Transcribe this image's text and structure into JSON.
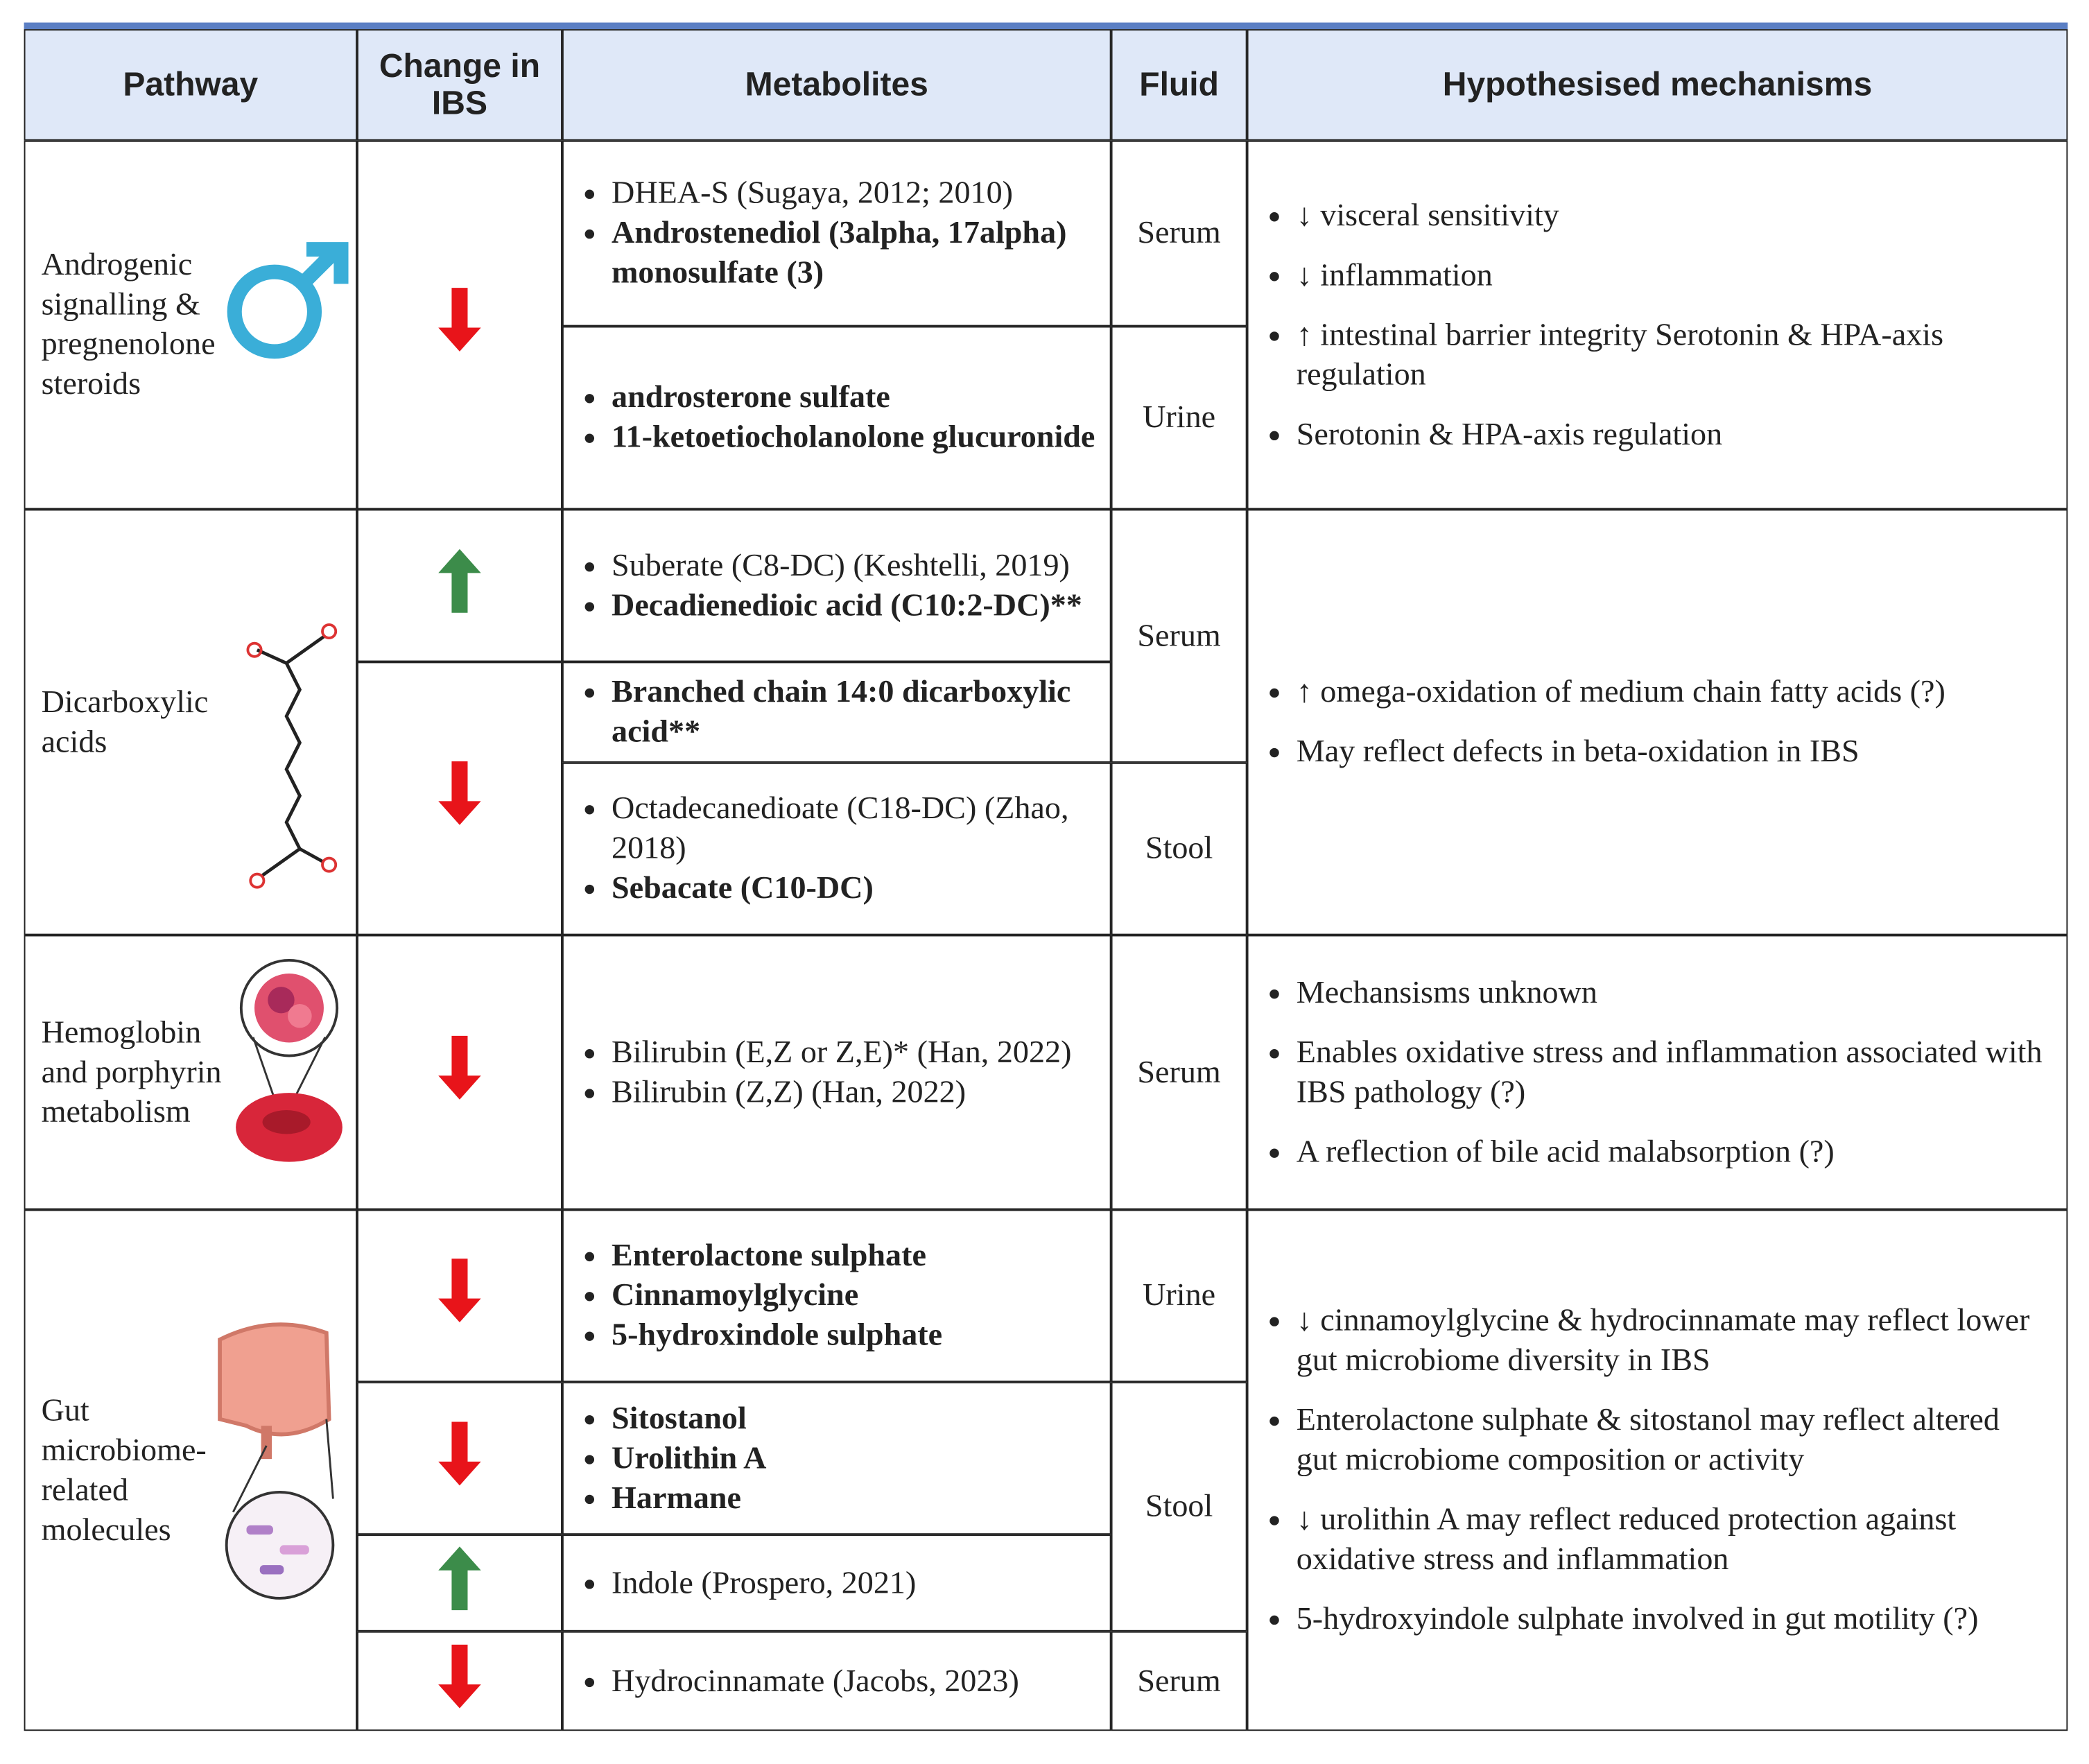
{
  "table": {
    "columns": [
      "Pathway",
      "Change in IBS",
      "Metabolites",
      "Fluid",
      "Hypothesised mechanisms"
    ],
    "rows": [
      {
        "pathway": "Androgenic signalling & pregnenolone steroids",
        "changes": [
          "down"
        ],
        "metabolites": [
          [
            {
              "text": "DHEA-S (Sugaya, 2012; 2010)",
              "bold": false
            },
            {
              "text": "Androstenediol (3alpha, 17alpha) monosulfate (3)",
              "bold": true
            }
          ],
          [
            {
              "text": "androsterone sulfate",
              "bold": true
            },
            {
              "text": "11-ketoetiocholanolone glucuronide",
              "bold": true
            }
          ]
        ],
        "fluids": [
          "Serum",
          "Urine"
        ],
        "mechanisms": [
          "↓ visceral sensitivity",
          "↓ inflammation",
          "↑ intestinal barrier integrity Serotonin & HPA-axis regulation",
          "Serotonin & HPA-axis regulation"
        ]
      },
      {
        "pathway": "Dicarboxylic acids",
        "changes": [
          "up",
          "down"
        ],
        "metabolites": [
          [
            {
              "text": "Suberate (C8-DC) (Keshtelli, 2019)",
              "bold": false
            },
            {
              "text": "Decadienedioic acid (C10:2-DC)**",
              "bold": true
            }
          ],
          [
            {
              "text": "Branched chain 14:0 dicarboxylic acid**",
              "bold": true
            }
          ],
          [
            {
              "text": "Octadecanedioate (C18-DC) (Zhao, 2018)",
              "bold": false
            },
            {
              "text": "Sebacate (C10-DC)",
              "bold": true
            }
          ]
        ],
        "fluids": [
          "Serum",
          "Stool"
        ],
        "mechanisms": [
          "↑ omega-oxidation of medium chain fatty acids (?)",
          "May reflect defects in beta-oxidation in IBS"
        ]
      },
      {
        "pathway": "Hemoglobin and porphyrin metabolism",
        "changes": [
          "down"
        ],
        "metabolites": [
          [
            {
              "text": "Bilirubin (E,Z or Z,E)* (Han, 2022)",
              "bold": false
            },
            {
              "text": "Bilirubin (Z,Z) (Han, 2022)",
              "bold": false
            }
          ]
        ],
        "fluids": [
          "Serum"
        ],
        "mechanisms": [
          "Mechansisms unknown",
          "Enables oxidative stress and inflammation associated with IBS pathology (?)",
          "A reflection of bile acid malabsorption (?)"
        ]
      },
      {
        "pathway": "Gut microbiome-related molecules",
        "changes": [
          "down",
          "down",
          "up",
          "down"
        ],
        "metabolites": [
          [
            {
              "text": "Enterolactone sulphate",
              "bold": true
            },
            {
              "text": "Cinnamoylglycine",
              "bold": true
            },
            {
              "text": "5-hydroxindole sulphate",
              "bold": true
            }
          ],
          [
            {
              "text": "Sitostanol",
              "bold": true
            },
            {
              "text": "Urolithin A",
              "bold": true
            },
            {
              "text": "Harmane",
              "bold": true
            }
          ],
          [
            {
              "text": "Indole (Prospero, 2021)",
              "bold": false
            }
          ],
          [
            {
              "text": "Hydrocinnamate (Jacobs, 2023)",
              "bold": false
            }
          ]
        ],
        "fluids": [
          "Urine",
          "Stool",
          "Serum"
        ],
        "mechanisms": [
          "↓ cinnamoylglycine & hydrocinnamate may reflect lower gut microbiome diversity in IBS",
          "Enterolactone sulphate & sitostanol may reflect altered gut microbiome composition or activity",
          "↓ urolithin A may reflect reduced protection against oxidative stress and inflammation",
          "5-hydroxyindole sulphate involved in gut motility (?)"
        ]
      }
    ]
  }
}
